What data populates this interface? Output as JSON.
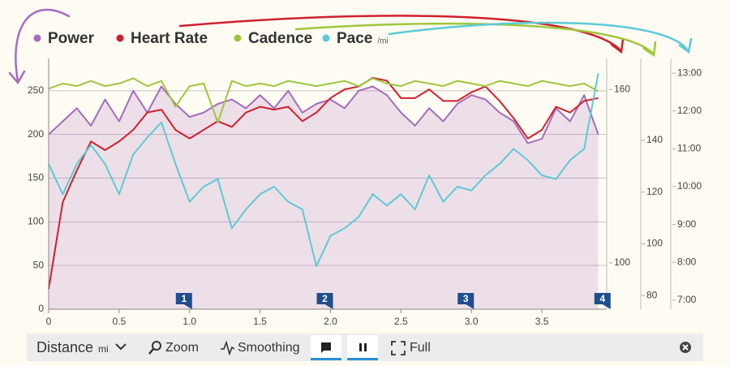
{
  "chart_data": {
    "type": "line",
    "x": [
      0,
      0.1,
      0.2,
      0.3,
      0.4,
      0.5,
      0.6,
      0.7,
      0.8,
      0.9,
      1.0,
      1.1,
      1.2,
      1.3,
      1.4,
      1.5,
      1.6,
      1.7,
      1.8,
      1.9,
      2.0,
      2.1,
      2.2,
      2.3,
      2.4,
      2.5,
      2.6,
      2.7,
      2.8,
      2.9,
      3.0,
      3.1,
      3.2,
      3.3,
      3.4,
      3.5,
      3.6,
      3.7,
      3.8,
      3.9
    ],
    "series": [
      {
        "name": "Power",
        "color": "#a66bbd",
        "axis": "y",
        "area": true,
        "values": [
          200,
          215,
          230,
          210,
          240,
          215,
          250,
          225,
          255,
          235,
          220,
          225,
          235,
          240,
          230,
          245,
          230,
          250,
          225,
          235,
          240,
          230,
          250,
          255,
          245,
          225,
          210,
          230,
          215,
          235,
          245,
          240,
          225,
          215,
          190,
          195,
          230,
          215,
          245,
          200
        ]
      },
      {
        "name": "Heart Rate",
        "color": "#d0202e",
        "axis": "y2",
        "values": [
          91,
          121,
          132,
          142,
          139,
          142,
          146,
          152,
          153,
          146,
          143,
          146,
          149,
          147,
          152,
          154,
          153,
          154,
          149,
          152,
          157,
          160,
          161,
          164,
          163,
          157,
          157,
          160,
          156,
          156,
          159,
          161,
          156,
          150,
          143,
          146,
          154,
          152,
          156,
          157
        ]
      },
      {
        "name": "Cadence",
        "color": "#9ec73d",
        "axis": "y3",
        "values": [
          160,
          162,
          161,
          163,
          161,
          162,
          164,
          161,
          163,
          153,
          161,
          162,
          147,
          163,
          161,
          162,
          161,
          163,
          162,
          161,
          162,
          163,
          161,
          164,
          162,
          161,
          163,
          162,
          161,
          163,
          162,
          161,
          163,
          162,
          161,
          163,
          162,
          161,
          162,
          159
        ]
      },
      {
        "name": "Pace",
        "color": "#5ccad6",
        "axis": "y4",
        "values": [
          10.6,
          9.8,
          10.6,
          11.1,
          10.6,
          9.8,
          10.85,
          11.3,
          11.7,
          10.6,
          9.6,
          10,
          10.2,
          8.9,
          9.4,
          9.8,
          10,
          9.6,
          9.4,
          7.9,
          8.7,
          8.9,
          9.2,
          9.8,
          9.5,
          9.8,
          9.4,
          10.3,
          9.6,
          10,
          9.9,
          10.3,
          10.6,
          11,
          10.7,
          10.3,
          10.2,
          10.7,
          11,
          13
        ]
      }
    ],
    "pace_unit": "/mi",
    "xlim": [
      0,
      3.96
    ],
    "xticks": [
      0,
      0.5,
      {
        "value": 1,
        "label": "1.0"
      },
      1.5,
      {
        "value": 2,
        "label": "2.0"
      },
      2.5,
      {
        "value": 3,
        "label": "3.0"
      },
      3.5
    ],
    "ylim": [
      0,
      287
    ],
    "yticks": [
      0,
      50,
      100,
      150,
      200,
      250
    ],
    "y2lim": [
      84,
      170.7
    ],
    "y2ticks": [
      100,
      160
    ],
    "y3lim": [
      74.7,
      171.7
    ],
    "y3ticks": [
      80,
      100,
      120,
      140
    ],
    "y4lim": [
      6.76,
      13.39
    ],
    "y4ticks": [
      {
        "value": 7,
        "label": "7:00"
      },
      {
        "value": 8,
        "label": "8:00"
      },
      {
        "value": 9,
        "label": "9:00"
      },
      {
        "value": 10,
        "label": "10:00"
      },
      {
        "value": 11,
        "label": "11:00"
      },
      {
        "value": 12,
        "label": "12:00"
      },
      {
        "value": 13,
        "label": "13:00"
      }
    ],
    "grid": true,
    "laps": [
      {
        "label": "1",
        "x": 0.96
      },
      {
        "label": "2",
        "x": 1.96
      },
      {
        "label": "3",
        "x": 2.96
      },
      {
        "label": "4",
        "x": 3.93
      }
    ]
  },
  "toolbar": {
    "axis": "Distance",
    "unit": "mi",
    "zoom": "Zoom",
    "smoothing": "Smoothing",
    "full": "Full"
  }
}
